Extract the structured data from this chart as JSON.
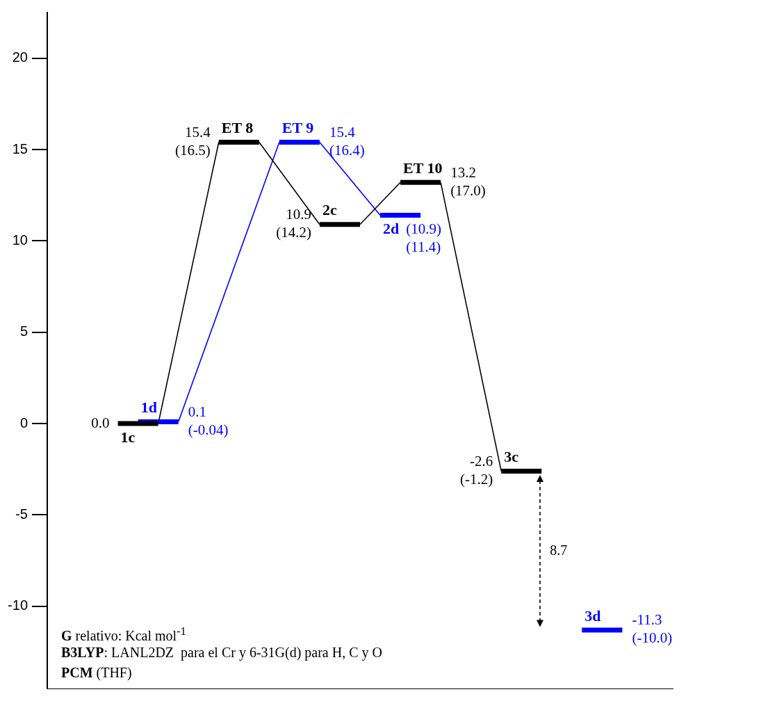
{
  "chart_data": {
    "type": "line",
    "categories": [
      null,
      null,
      null,
      null,
      null,
      null,
      null,
      null,
      null,
      null,
      null,
      null,
      null,
      null,
      null,
      null,
      null,
      null,
      null,
      null,
      null,
      null,
      null,
      null,
      null,
      null,
      null,
      null,
      null,
      null,
      null
    ],
    "series": [
      {
        "name": "1c",
        "color": "#000000",
        "values": [
          null,
          null,
          null,
          0.0,
          0.0,
          0.0,
          null,
          null,
          null,
          null,
          null,
          null,
          null,
          null,
          null,
          null,
          null,
          null,
          null,
          null,
          null,
          null,
          null,
          null,
          null,
          null,
          null,
          null,
          null,
          null,
          null
        ],
        "value_labels": [
          null,
          null,
          null,
          "0.0",
          null,
          null,
          null,
          null,
          null,
          null,
          null,
          null,
          null,
          null,
          null,
          null,
          null,
          null,
          null,
          null,
          null,
          null,
          null,
          null,
          null,
          null,
          null,
          null,
          null,
          null,
          null
        ]
      },
      {
        "name": "ET 8",
        "color": "#000000",
        "values": [
          null,
          null,
          null,
          null,
          null,
          null,
          null,
          null,
          15.4,
          15.4,
          15.4,
          null,
          null,
          null,
          null,
          null,
          null,
          null,
          null,
          null,
          null,
          null,
          null,
          null,
          null,
          null,
          null,
          null,
          null,
          null,
          null
        ],
        "value_labels": [
          null,
          null,
          null,
          null,
          null,
          null,
          null,
          null,
          "15.4\n(16.5)",
          null,
          null,
          null,
          null,
          null,
          null,
          null,
          null,
          null,
          null,
          null,
          null,
          null,
          null,
          null,
          null,
          null,
          null,
          null,
          null,
          null,
          null
        ]
      },
      {
        "name": "2c",
        "color": "#000000",
        "values": [
          null,
          null,
          null,
          null,
          null,
          null,
          null,
          null,
          null,
          null,
          null,
          null,
          null,
          10.9,
          10.9,
          10.9,
          null,
          null,
          null,
          null,
          null,
          null,
          null,
          null,
          null,
          null,
          null,
          null,
          null,
          null,
          null
        ],
        "value_labels": [
          null,
          null,
          null,
          null,
          null,
          null,
          null,
          null,
          null,
          null,
          null,
          null,
          null,
          "10.9\n(14.2)",
          null,
          null,
          null,
          null,
          null,
          null,
          null,
          null,
          null,
          null,
          null,
          null,
          null,
          null,
          null,
          null,
          null
        ]
      },
      {
        "name": "ET 10",
        "color": "#000000",
        "values": [
          null,
          null,
          null,
          null,
          null,
          null,
          null,
          null,
          null,
          null,
          null,
          null,
          null,
          null,
          null,
          null,
          null,
          13.2,
          13.2,
          13.2,
          null,
          null,
          null,
          null,
          null,
          null,
          null,
          null,
          null,
          null,
          null
        ],
        "value_labels": [
          null,
          null,
          null,
          null,
          null,
          null,
          null,
          null,
          null,
          null,
          null,
          null,
          null,
          null,
          null,
          null,
          null,
          null,
          null,
          "13.2\n(17.0)",
          null,
          null,
          null,
          null,
          null,
          null,
          null,
          null,
          null,
          null,
          null
        ]
      },
      {
        "name": "3c",
        "color": "#000000",
        "values": [
          null,
          null,
          null,
          null,
          null,
          null,
          null,
          null,
          null,
          null,
          null,
          null,
          null,
          null,
          null,
          null,
          null,
          null,
          null,
          null,
          null,
          null,
          -2.6,
          -2.6,
          -2.6,
          null,
          null,
          null,
          null,
          null,
          null
        ],
        "value_labels": [
          null,
          null,
          null,
          null,
          null,
          null,
          null,
          null,
          null,
          null,
          null,
          null,
          null,
          null,
          null,
          null,
          null,
          null,
          null,
          null,
          null,
          null,
          "-2.6\n(-1.2)",
          null,
          null,
          null,
          null,
          null,
          null,
          null,
          null
        ]
      },
      {
        "name": "1d",
        "color": "#0000ff",
        "values": [
          null,
          null,
          null,
          null,
          0.1,
          0.1,
          0.1,
          null,
          null,
          null,
          null,
          null,
          null,
          null,
          null,
          null,
          null,
          null,
          null,
          null,
          null,
          null,
          null,
          null,
          null,
          null,
          null,
          null,
          null,
          null,
          null
        ],
        "value_labels": [
          null,
          null,
          null,
          null,
          null,
          null,
          "0.1\n(-0.04)",
          null,
          null,
          null,
          null,
          null,
          null,
          null,
          null,
          null,
          null,
          null,
          null,
          null,
          null,
          null,
          null,
          null,
          null,
          null,
          null,
          null,
          null,
          null,
          null
        ]
      },
      {
        "name": "ET 9",
        "color": "#0000ff",
        "values": [
          null,
          null,
          null,
          null,
          null,
          null,
          null,
          null,
          null,
          null,
          null,
          15.4,
          15.4,
          15.4,
          null,
          null,
          null,
          null,
          null,
          null,
          null,
          null,
          null,
          null,
          null,
          null,
          null,
          null,
          null,
          null,
          null
        ],
        "value_labels": [
          null,
          null,
          null,
          null,
          null,
          null,
          null,
          null,
          null,
          null,
          null,
          null,
          null,
          "15.4\n(16.4)",
          null,
          null,
          null,
          null,
          null,
          null,
          null,
          null,
          null,
          null,
          null,
          null,
          null,
          null,
          null,
          null,
          null
        ]
      },
      {
        "name": "2d",
        "color": "#0000ff",
        "values": [
          null,
          null,
          null,
          null,
          null,
          null,
          null,
          null,
          null,
          null,
          null,
          null,
          null,
          null,
          null,
          null,
          11.4,
          11.4,
          11.4,
          null,
          null,
          null,
          null,
          null,
          null,
          null,
          null,
          null,
          null,
          null,
          null
        ],
        "value_labels": [
          null,
          null,
          null,
          null,
          null,
          null,
          null,
          null,
          null,
          null,
          null,
          null,
          null,
          null,
          null,
          null,
          null,
          null,
          "(10.9)\n(11.4)",
          null,
          null,
          null,
          null,
          null,
          null,
          null,
          null,
          null,
          null,
          null,
          null
        ]
      },
      {
        "name": "3d",
        "color": "#0000ff",
        "values": [
          null,
          null,
          null,
          null,
          null,
          null,
          null,
          null,
          null,
          null,
          null,
          null,
          null,
          null,
          null,
          null,
          null,
          null,
          null,
          null,
          null,
          null,
          null,
          null,
          null,
          null,
          -11.3,
          -11.3,
          -11.3,
          null,
          null
        ],
        "value_labels": [
          null,
          null,
          null,
          null,
          null,
          null,
          null,
          null,
          null,
          null,
          null,
          null,
          null,
          null,
          null,
          null,
          null,
          null,
          null,
          null,
          null,
          null,
          null,
          null,
          null,
          null,
          null,
          null,
          "-11.3\n(-10.0)",
          null,
          null
        ]
      },
      {
        "color": "#000000",
        "values": [
          null,
          null,
          null,
          null,
          null,
          0.0,
          null,
          null,
          15.4,
          null,
          null,
          null,
          null,
          null,
          null,
          null,
          null,
          null,
          null,
          null,
          null,
          null,
          null,
          null,
          null,
          null,
          null,
          null,
          null,
          null,
          null
        ]
      },
      {
        "color": "#000000",
        "values": [
          null,
          null,
          null,
          null,
          null,
          null,
          null,
          null,
          null,
          null,
          15.4,
          null,
          null,
          10.9,
          null,
          null,
          null,
          null,
          null,
          null,
          null,
          null,
          null,
          null,
          null,
          null,
          null,
          null,
          null,
          null,
          null
        ]
      },
      {
        "color": "#000000",
        "values": [
          null,
          null,
          null,
          null,
          null,
          null,
          null,
          null,
          null,
          null,
          null,
          null,
          null,
          null,
          null,
          10.9,
          null,
          13.2,
          null,
          null,
          null,
          null,
          null,
          null,
          null,
          null,
          null,
          null,
          null,
          null,
          null
        ]
      },
      {
        "color": "#000000",
        "values": [
          null,
          null,
          null,
          null,
          null,
          null,
          null,
          null,
          null,
          null,
          null,
          null,
          null,
          null,
          null,
          null,
          null,
          null,
          null,
          13.2,
          null,
          null,
          -2.6,
          null,
          null,
          null,
          null,
          null,
          null,
          null,
          null
        ]
      },
      {
        "color": "#0000ff",
        "values": [
          null,
          null,
          null,
          null,
          null,
          null,
          0.1,
          null,
          null,
          null,
          null,
          15.4,
          null,
          null,
          null,
          null,
          null,
          null,
          null,
          null,
          null,
          null,
          null,
          null,
          null,
          null,
          null,
          null,
          null,
          null,
          null
        ]
      },
      {
        "color": "#0000ff",
        "values": [
          null,
          null,
          null,
          null,
          null,
          null,
          null,
          null,
          null,
          null,
          null,
          null,
          null,
          15.4,
          null,
          null,
          11.4,
          null,
          null,
          null,
          null,
          null,
          null,
          null,
          null,
          null,
          null,
          null,
          null,
          null,
          null
        ]
      }
    ],
    "ylim": [
      -14.5,
      22.5
    ],
    "yticks": [
      -10,
      -5,
      0,
      5,
      10,
      15,
      20
    ],
    "tick_labels": "y",
    "grid": false,
    "legend": false,
    "marker": "none",
    "line_style": "solid",
    "annotations": [
      "8.7",
      "G relativo: Kcal mol$^{-1}$",
      "B3LYP: LANL2DZ  para el Cr y 6-31G(d) para H, C y O",
      "PCM (THF)"
    ]
  }
}
